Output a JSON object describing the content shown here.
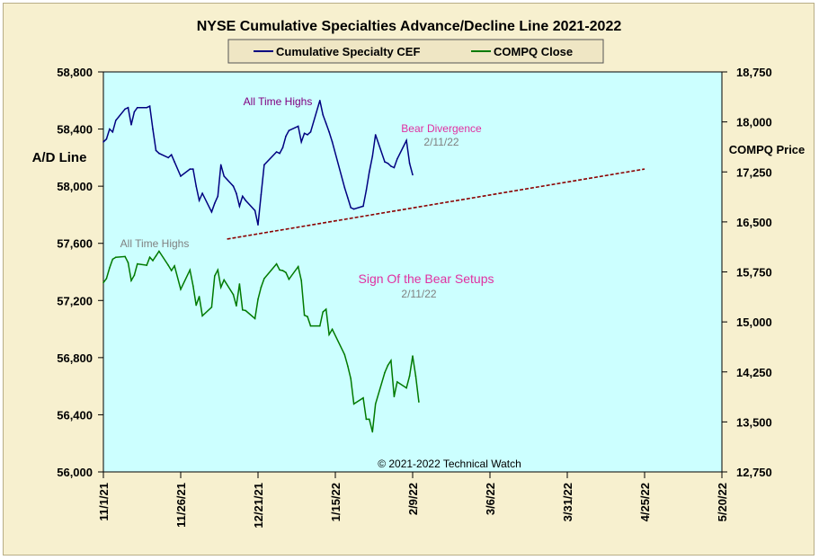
{
  "chart_data": {
    "type": "line",
    "title": "NYSE Cumulative Specialties Advance/Decline Line 2021-2022",
    "ylabel_left": "A/D Line",
    "ylabel_right": "COMPQ Price",
    "x_ticks": [
      "11/1/21",
      "11/26/21",
      "12/21/21",
      "1/15/22",
      "2/9/22",
      "3/6/22",
      "3/31/22",
      "4/25/22",
      "5/20/22"
    ],
    "x_range": [
      "2021-11-01",
      "2022-05-20"
    ],
    "y_left_ticks": [
      "56,000",
      "56,400",
      "56,800",
      "57,200",
      "57,600",
      "58,000",
      "58,400",
      "58,800"
    ],
    "y_left_range": [
      56000,
      58800
    ],
    "y_right_ticks": [
      "12,750",
      "13,500",
      "14,250",
      "15,000",
      "15,750",
      "16,500",
      "17,250",
      "18,000",
      "18,750"
    ],
    "y_right_range": [
      12750,
      18750
    ],
    "legend": [
      "Cumulative Specialty CEF",
      "COMPQ Close"
    ],
    "colors": {
      "ad_line": "#000080",
      "compq": "#007a00",
      "trend": "#8b0000",
      "plot_bg": "#ccffff",
      "frame_bg": "#f7f0cf"
    },
    "series": [
      {
        "name": "Cumulative Specialty CEF",
        "axis": "left",
        "x": [
          "2021-11-01",
          "2021-11-02",
          "2021-11-03",
          "2021-11-04",
          "2021-11-05",
          "2021-11-08",
          "2021-11-09",
          "2021-11-10",
          "2021-11-11",
          "2021-11-12",
          "2021-11-15",
          "2021-11-16",
          "2021-11-17",
          "2021-11-18",
          "2021-11-19",
          "2021-11-22",
          "2021-11-23",
          "2021-11-24",
          "2021-11-26",
          "2021-11-29",
          "2021-11-30",
          "2021-12-01",
          "2021-12-02",
          "2021-12-03",
          "2021-12-06",
          "2021-12-07",
          "2021-12-08",
          "2021-12-09",
          "2021-12-10",
          "2021-12-13",
          "2021-12-14",
          "2021-12-15",
          "2021-12-16",
          "2021-12-17",
          "2021-12-20",
          "2021-12-21",
          "2021-12-22",
          "2021-12-23",
          "2021-12-27",
          "2021-12-28",
          "2021-12-29",
          "2021-12-30",
          "2021-12-31",
          "2022-01-03",
          "2022-01-04",
          "2022-01-05",
          "2022-01-06",
          "2022-01-07",
          "2022-01-10",
          "2022-01-11",
          "2022-01-12",
          "2022-01-13",
          "2022-01-14",
          "2022-01-18",
          "2022-01-19",
          "2022-01-20",
          "2022-01-21",
          "2022-01-24",
          "2022-01-25",
          "2022-01-26",
          "2022-01-27",
          "2022-01-28",
          "2022-01-31",
          "2022-02-01",
          "2022-02-02",
          "2022-02-03",
          "2022-02-04",
          "2022-02-07",
          "2022-02-08",
          "2022-02-09",
          "2022-02-10",
          "2022-02-11"
        ],
        "values": [
          58310,
          58330,
          58400,
          58380,
          58460,
          58540,
          58550,
          58430,
          58520,
          58550,
          58550,
          58560,
          58400,
          58250,
          58230,
          58200,
          58220,
          58170,
          58070,
          58120,
          58120,
          58000,
          57900,
          57950,
          57820,
          57880,
          57930,
          58150,
          58070,
          58000,
          57950,
          57860,
          57930,
          57900,
          57830,
          57730,
          57940,
          58150,
          58240,
          58230,
          58270,
          58350,
          58390,
          58420,
          58310,
          58370,
          58360,
          58380,
          58600,
          58500,
          58440,
          58380,
          58310,
          57990,
          57920,
          57850,
          57840,
          57860,
          57970,
          58100,
          58210,
          58360,
          58170,
          58160,
          58140,
          58130,
          58190,
          58320,
          58160,
          58080,
          null,
          null
        ]
      },
      {
        "name": "COMPQ Close",
        "axis": "right",
        "x": [
          "2021-11-01",
          "2021-11-02",
          "2021-11-03",
          "2021-11-04",
          "2021-11-05",
          "2021-11-08",
          "2021-11-09",
          "2021-11-10",
          "2021-11-11",
          "2021-11-12",
          "2021-11-15",
          "2021-11-16",
          "2021-11-17",
          "2021-11-18",
          "2021-11-19",
          "2021-11-22",
          "2021-11-23",
          "2021-11-24",
          "2021-11-26",
          "2021-11-29",
          "2021-11-30",
          "2021-12-01",
          "2021-12-02",
          "2021-12-03",
          "2021-12-06",
          "2021-12-07",
          "2021-12-08",
          "2021-12-09",
          "2021-12-10",
          "2021-12-13",
          "2021-12-14",
          "2021-12-15",
          "2021-12-16",
          "2021-12-17",
          "2021-12-20",
          "2021-12-21",
          "2021-12-22",
          "2021-12-23",
          "2021-12-27",
          "2021-12-28",
          "2021-12-29",
          "2021-12-30",
          "2021-12-31",
          "2022-01-03",
          "2022-01-04",
          "2022-01-05",
          "2022-01-06",
          "2022-01-07",
          "2022-01-10",
          "2022-01-11",
          "2022-01-12",
          "2022-01-13",
          "2022-01-14",
          "2022-01-18",
          "2022-01-19",
          "2022-01-20",
          "2022-01-21",
          "2022-01-24",
          "2022-01-25",
          "2022-01-26",
          "2022-01-27",
          "2022-01-28",
          "2022-01-31",
          "2022-02-01",
          "2022-02-02",
          "2022-02-03",
          "2022-02-04",
          "2022-02-07",
          "2022-02-08",
          "2022-02-09",
          "2022-02-10",
          "2022-02-11"
        ],
        "values": [
          15590,
          15650,
          15810,
          15940,
          15970,
          15980,
          15890,
          15620,
          15700,
          15870,
          15850,
          15970,
          15920,
          15990,
          16060,
          15850,
          15770,
          15840,
          15490,
          15780,
          15540,
          15250,
          15380,
          15090,
          15220,
          15690,
          15780,
          15520,
          15630,
          15410,
          15240,
          15570,
          15180,
          15170,
          15050,
          15340,
          15520,
          15650,
          15870,
          15780,
          15770,
          15740,
          15640,
          15830,
          15620,
          15100,
          15080,
          14940,
          14940,
          15150,
          15190,
          14810,
          14890,
          14510,
          14340,
          14150,
          13770,
          13860,
          13540,
          13540,
          13350,
          13770,
          14240,
          14350,
          14420,
          13880,
          14100,
          14010,
          14190,
          14490,
          14190,
          13800
        ]
      }
    ],
    "trendline": {
      "from": [
        "2021-12-11",
        57630
      ],
      "to": [
        "2022-04-25",
        58120
      ]
    },
    "annotations": [
      {
        "text": "All Time Highs",
        "color": "#800080"
      },
      {
        "text": "Bear Divergence",
        "color": "#e030a0"
      },
      {
        "text": "2/11/22",
        "color": "#808080"
      },
      {
        "text": "All Time Highs",
        "color": "#808080"
      },
      {
        "text": "Sign Of the Bear Setups",
        "color": "#e030a0"
      },
      {
        "text": "2/11/22",
        "color": "#808080"
      },
      {
        "text": "© 2021-2022  Technical Watch",
        "color": "#000000"
      }
    ]
  }
}
